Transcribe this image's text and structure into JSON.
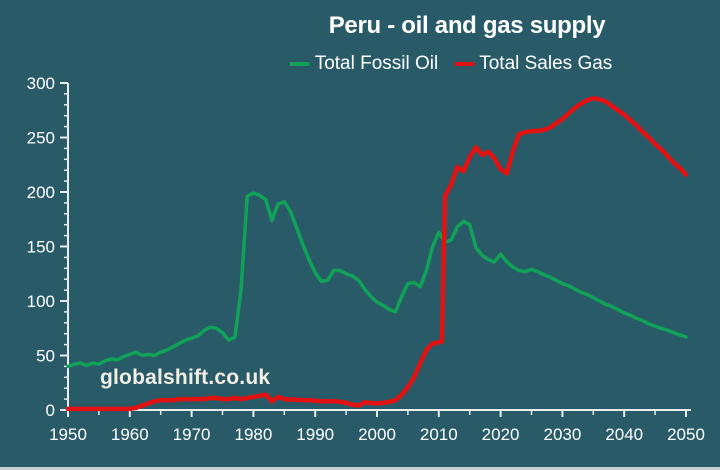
{
  "chart": {
    "watermark": "globalshift.co.uk"
  },
  "chart_data": {
    "type": "line",
    "title": "Peru - oil and gas supply",
    "xlabel": "",
    "ylabel": "",
    "xlim": [
      1950,
      2050
    ],
    "ylim": [
      0,
      300
    ],
    "x_major": 10,
    "x_minor": 5,
    "y_major": 50,
    "y_minor": 10,
    "grid": false,
    "legend_position": "top-center",
    "x_tick_labels": [
      "1950",
      "1960",
      "1970",
      "1980",
      "1990",
      "2000",
      "2010",
      "2020",
      "2030",
      "2040",
      "2050"
    ],
    "y_tick_labels": [
      "0",
      "50",
      "100",
      "150",
      "200",
      "250",
      "300"
    ],
    "colors": {
      "background": "#295A68",
      "axis": "#E8ECEC",
      "tick_text": "#FFFFFF",
      "title_text": "#FFFFFF",
      "watermark_text": "#F2EFE4",
      "bottom_strip": "#C9CED3"
    },
    "series": [
      {
        "name": "Total Fossil Oil",
        "color": "#10A358",
        "width": 3.5,
        "x_start": 1950,
        "values": [
          40,
          42,
          43,
          41,
          43,
          42,
          45,
          47,
          46,
          49,
          51,
          53,
          50,
          51,
          50,
          53,
          55,
          58,
          61,
          64,
          66,
          68,
          73,
          76,
          75,
          71,
          64,
          67,
          110,
          196,
          199,
          197,
          193,
          174,
          189,
          191,
          182,
          167,
          152,
          138,
          126,
          118,
          119,
          128,
          128,
          125,
          123,
          119,
          111,
          104,
          99,
          96,
          92,
          90,
          104,
          116,
          117,
          113,
          128,
          150,
          163,
          154,
          156,
          168,
          173,
          170,
          149,
          142,
          138,
          136,
          143,
          136,
          131,
          128,
          127,
          129,
          127,
          124,
          122,
          119,
          116,
          114,
          111,
          108,
          106,
          103,
          100,
          97,
          95,
          92,
          89,
          87,
          84,
          82,
          79,
          77,
          75,
          73,
          71,
          69,
          67
        ]
      },
      {
        "name": "Total Sales Gas",
        "color": "#E21212",
        "width": 4.5,
        "x": [
          1950,
          1951,
          1952,
          1953,
          1954,
          1955,
          1956,
          1957,
          1958,
          1959,
          1960,
          1961,
          1962,
          1963,
          1964,
          1965,
          1966,
          1967,
          1968,
          1969,
          1970,
          1971,
          1972,
          1973,
          1974,
          1975,
          1976,
          1977,
          1978,
          1979,
          1980,
          1981,
          1982,
          1983,
          1984,
          1985,
          1986,
          1987,
          1988,
          1989,
          1990,
          1991,
          1992,
          1993,
          1994,
          1995,
          1996,
          1997,
          1998,
          1999,
          2000,
          2001,
          2002,
          2003,
          2004,
          2005,
          2006,
          2007,
          2008,
          2009,
          2010,
          2010.5,
          2011,
          2012,
          2013,
          2014,
          2015,
          2016,
          2017,
          2018,
          2019,
          2020,
          2021,
          2022,
          2023,
          2024,
          2025,
          2026,
          2027,
          2028,
          2029,
          2030,
          2031,
          2032,
          2033,
          2034,
          2035,
          2036,
          2037,
          2038,
          2039,
          2040,
          2041,
          2042,
          2043,
          2044,
          2045,
          2046,
          2047,
          2048,
          2049,
          2050
        ],
        "values": [
          1,
          1,
          1,
          1,
          1,
          1,
          1,
          1,
          1,
          1,
          1,
          2,
          4,
          6,
          8,
          9,
          9,
          9,
          10,
          10,
          10,
          10,
          10,
          11,
          11,
          10,
          10,
          11,
          10,
          11,
          12,
          13,
          14,
          8,
          12,
          10,
          9.5,
          9.5,
          9,
          9,
          8.5,
          8,
          8,
          8,
          7.5,
          6.5,
          5,
          4,
          7,
          6.5,
          6,
          6.5,
          7.5,
          9,
          14,
          21,
          30,
          43,
          55,
          61,
          62,
          63,
          196,
          207,
          223,
          219,
          232,
          241,
          234,
          237,
          231,
          221,
          217,
          238,
          253,
          255,
          256,
          256,
          257,
          259,
          263,
          267,
          272,
          277,
          281,
          284,
          286,
          285,
          283,
          279,
          275,
          271,
          266,
          261,
          255,
          250,
          244,
          239,
          233,
          227,
          222,
          216
        ]
      }
    ]
  }
}
